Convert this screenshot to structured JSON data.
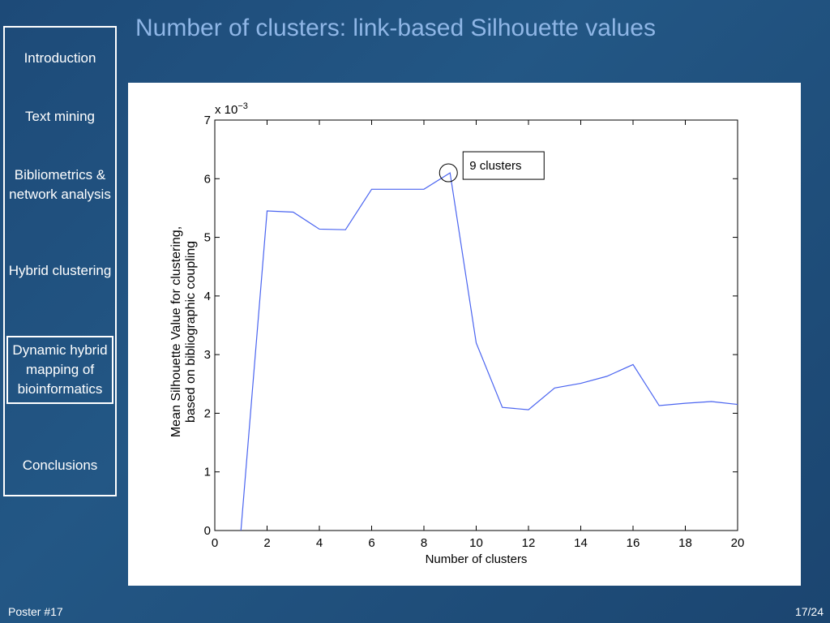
{
  "title": "Number of clusters: link-based Silhouette values",
  "nav": [
    "Introduction",
    "Text mining",
    "Bibliometrics & network analysis",
    "Hybrid clustering",
    "Dynamic hybrid mapping of bioinformatics",
    "Conclusions"
  ],
  "footer": {
    "left": "Poster #17",
    "right": "17/24"
  },
  "chart_data": {
    "type": "line",
    "xlabel": "Number of clusters",
    "ylabel": [
      "Mean Silhouette Value for clustering,",
      "based on bibliographic coupling"
    ],
    "y_multiplier": {
      "base": "x 10",
      "exponent": "−3"
    },
    "x": [
      1,
      2,
      3,
      4,
      5,
      6,
      7,
      8,
      9,
      10,
      11,
      12,
      13,
      14,
      15,
      16,
      17,
      18,
      19,
      20
    ],
    "series": [
      {
        "color": "#4a64f0",
        "values": [
          0,
          5.45,
          5.43,
          5.14,
          5.13,
          5.82,
          5.82,
          5.82,
          6.1,
          3.2,
          2.1,
          2.06,
          2.43,
          2.51,
          2.63,
          2.83,
          2.13,
          2.17,
          2.2,
          2.15
        ]
      }
    ],
    "annotations": [
      {
        "text": "9 clusters",
        "x": 9,
        "y": 6.1
      }
    ],
    "xlim": [
      0,
      20
    ],
    "xticks": [
      0,
      2,
      4,
      6,
      8,
      10,
      12,
      14,
      16,
      18,
      20
    ],
    "ylim": [
      0,
      7
    ],
    "yticks": [
      0,
      1,
      2,
      3,
      4,
      5,
      6,
      7
    ],
    "grid": false
  }
}
